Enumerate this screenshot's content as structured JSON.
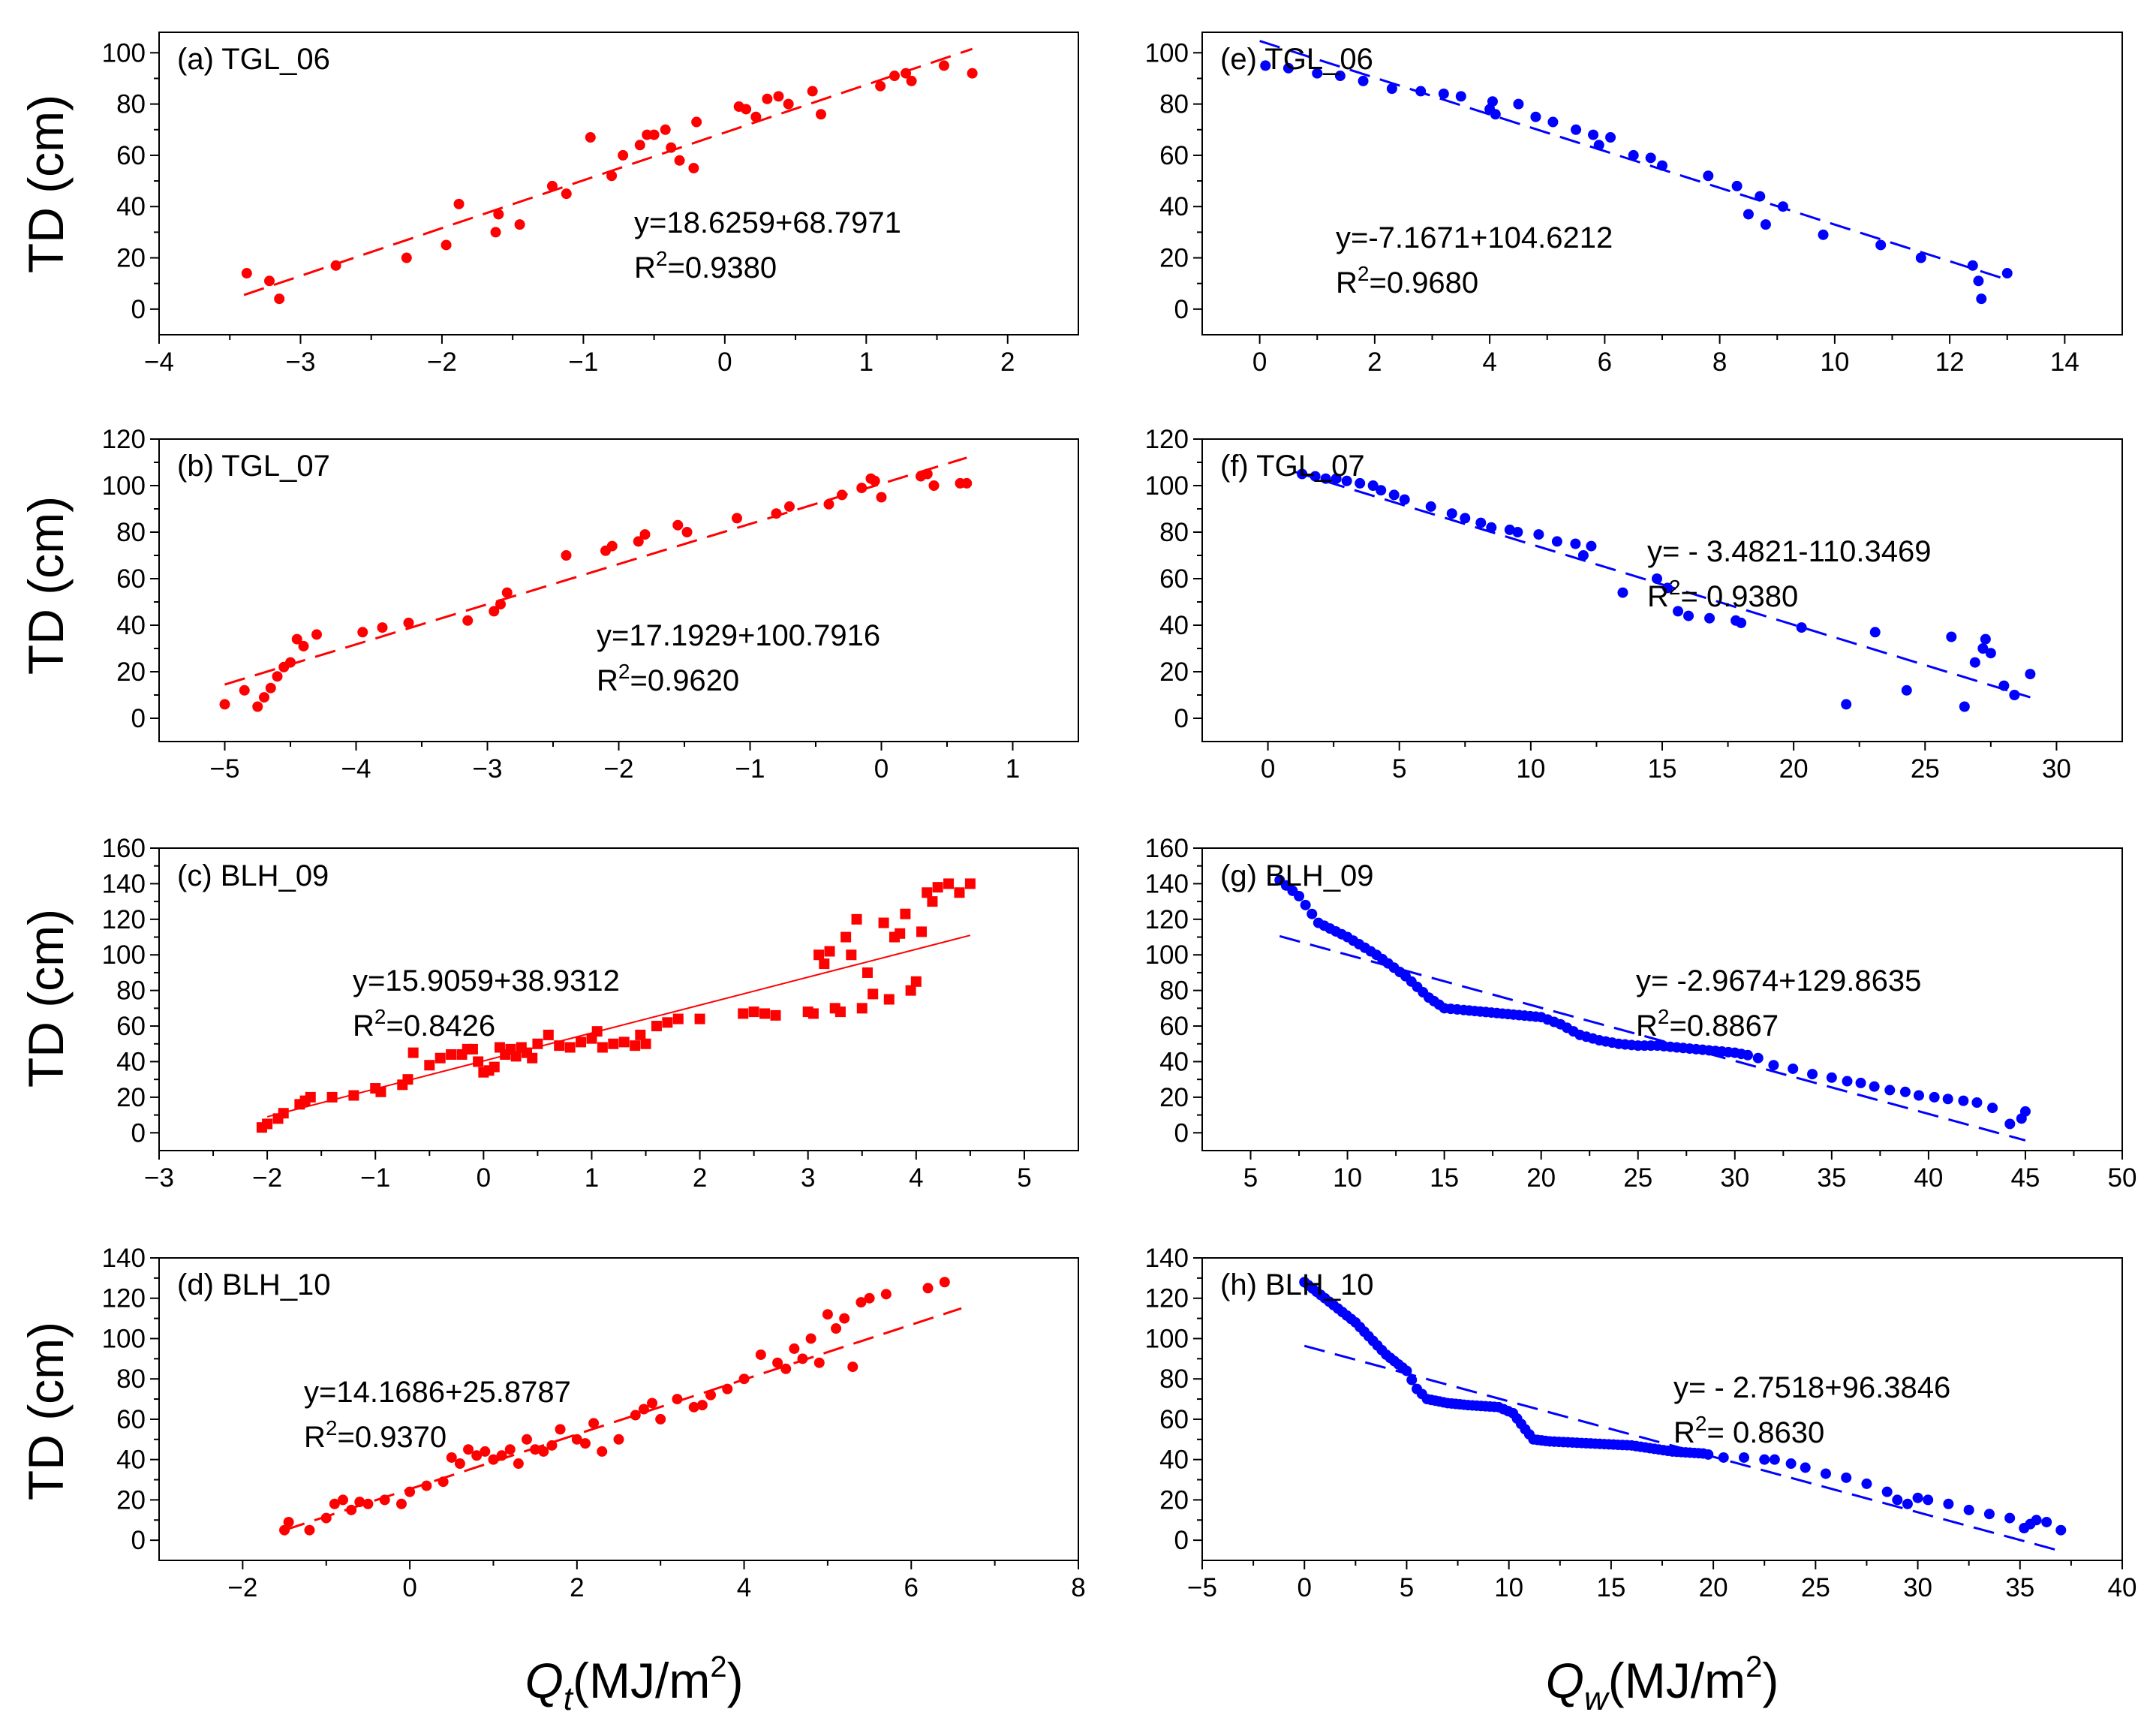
{
  "figure": {
    "ylabel": "TD (cm)",
    "xlabel_left": {
      "symbol": "Q",
      "sub": "t",
      "unit": "(MJ/m",
      "sup": "2",
      "close": ")"
    },
    "xlabel_right": {
      "symbol": "Q",
      "sub": "w",
      "unit": "(MJ/m",
      "sup": "2",
      "close": ")"
    }
  },
  "colors": {
    "red": "#ff0000",
    "blue": "#0000ff",
    "axis": "#000000"
  },
  "chart_data": [
    {
      "id": "a",
      "type": "scatter",
      "label": "(a) TGL_06",
      "color": "#ff0000",
      "marker": "circle",
      "xlim": [
        -4,
        2.5
      ],
      "ylim": [
        -10,
        108
      ],
      "xticks": [
        -4,
        -3,
        -2,
        -1,
        0,
        1,
        2
      ],
      "xticklabels": [
        "−4",
        "−3",
        "−2",
        "−1",
        "0",
        "1",
        "2"
      ],
      "yticks": [
        0,
        20,
        40,
        60,
        80,
        100
      ],
      "yticklabels": [
        "0",
        "20",
        "40",
        "60",
        "80",
        "100"
      ],
      "eq": "y=18.6259+68.7971",
      "r2_prefix": "R",
      "r2_sup": "2",
      "r2_value": "=0.9380",
      "fit": {
        "x": [
          -3.4,
          1.75
        ],
        "y": [
          5.5,
          101.5
        ],
        "dash": "28 14"
      },
      "x": [
        -3.38,
        -3.22,
        -3.15,
        -2.75,
        -2.25,
        -1.97,
        -1.88,
        -1.62,
        -1.6,
        -1.45,
        -1.22,
        -1.12,
        -0.95,
        -0.8,
        -0.72,
        -0.6,
        -0.55,
        -0.5,
        -0.42,
        -0.38,
        -0.32,
        -0.22,
        -0.2,
        0.1,
        0.15,
        0.22,
        0.3,
        0.38,
        0.45,
        0.62,
        0.68,
        1.1,
        1.2,
        1.28,
        1.32,
        1.55,
        1.75
      ],
      "y": [
        14,
        11,
        4,
        17,
        20,
        25,
        41,
        30,
        37,
        33,
        48,
        45,
        67,
        52,
        60,
        64,
        68,
        68,
        70,
        63,
        58,
        55,
        73,
        79,
        78,
        75,
        82,
        83,
        80,
        85,
        76,
        87,
        91,
        92,
        89,
        95,
        92
      ]
    },
    {
      "id": "b",
      "type": "scatter",
      "label": "(b) TGL_07",
      "color": "#ff0000",
      "marker": "circle",
      "xlim": [
        -5.5,
        1.5
      ],
      "ylim": [
        -10,
        120
      ],
      "xticks": [
        -5,
        -4,
        -3,
        -2,
        -1,
        0,
        1
      ],
      "xticklabels": [
        "−5",
        "−4",
        "−3",
        "−2",
        "−1",
        "0",
        "1"
      ],
      "yticks": [
        0,
        20,
        40,
        60,
        80,
        100,
        120
      ],
      "yticklabels": [
        "0",
        "20",
        "40",
        "60",
        "80",
        "100",
        "120"
      ],
      "eq": "y=17.1929+100.7916",
      "r2_prefix": "R",
      "r2_sup": "2",
      "r2_value": "=0.9620",
      "fit": {
        "x": [
          -5.0,
          0.65
        ],
        "y": [
          14.5,
          112
        ],
        "dash": "28 14"
      },
      "x": [
        -5.0,
        -4.85,
        -4.75,
        -4.7,
        -4.65,
        -4.6,
        -4.55,
        -4.5,
        -4.45,
        -4.4,
        -4.3,
        -3.95,
        -3.8,
        -3.6,
        -3.15,
        -2.95,
        -2.9,
        -2.85,
        -2.4,
        -2.1,
        -2.05,
        -1.85,
        -1.8,
        -1.55,
        -1.48,
        -1.1,
        -0.8,
        -0.7,
        -0.4,
        -0.3,
        -0.15,
        -0.08,
        -0.05,
        0.0,
        0.3,
        0.35,
        0.4,
        0.6,
        0.65
      ],
      "y": [
        6,
        12,
        5,
        9,
        13,
        18,
        22,
        24,
        34,
        31,
        36,
        37,
        39,
        41,
        42,
        46,
        49,
        54,
        70,
        72,
        74,
        76,
        79,
        83,
        80,
        86,
        88,
        91,
        92,
        96,
        99,
        103,
        102,
        95,
        104,
        105,
        100,
        101,
        101
      ]
    },
    {
      "id": "c",
      "type": "scatter",
      "label": "(c) BLH_09",
      "color": "#ff0000",
      "marker": "square",
      "xlim": [
        -3,
        5.5
      ],
      "ylim": [
        -10,
        160
      ],
      "xticks": [
        -3,
        -2,
        -1,
        0,
        1,
        2,
        3,
        4,
        5
      ],
      "xticklabels": [
        "−3",
        "−2",
        "−1",
        "0",
        "1",
        "2",
        "3",
        "4",
        "5"
      ],
      "yticks": [
        0,
        20,
        40,
        60,
        80,
        100,
        120,
        140,
        160
      ],
      "yticklabels": [
        "0",
        "20",
        "40",
        "60",
        "80",
        "100",
        "120",
        "140",
        "160"
      ],
      "eq": "y=15.9059+38.9312",
      "r2_prefix": "R",
      "r2_sup": "2",
      "r2_value": "=0.8426",
      "fit": {
        "x": [
          -2.0,
          4.5
        ],
        "y": [
          9,
          111
        ],
        "dash": "none"
      },
      "x": [
        -2.05,
        -2.0,
        -1.9,
        -1.85,
        -1.7,
        -1.65,
        -1.6,
        -1.4,
        -1.2,
        -1.0,
        -0.95,
        -0.75,
        -0.7,
        -0.65,
        -0.5,
        -0.4,
        -0.3,
        -0.2,
        -0.15,
        -0.1,
        -0.05,
        0.0,
        0.05,
        0.1,
        0.15,
        0.2,
        0.25,
        0.3,
        0.35,
        0.4,
        0.45,
        0.5,
        0.6,
        0.7,
        0.8,
        0.9,
        1.0,
        1.05,
        1.1,
        1.2,
        1.3,
        1.4,
        1.45,
        1.5,
        1.6,
        1.7,
        1.8,
        2.0,
        2.4,
        2.5,
        2.6,
        2.7,
        3.0,
        3.05,
        3.1,
        3.15,
        3.2,
        3.25,
        3.3,
        3.35,
        3.4,
        3.45,
        3.5,
        3.55,
        3.6,
        3.7,
        3.75,
        3.8,
        3.85,
        3.9,
        3.95,
        4.0,
        4.05,
        4.1,
        4.15,
        4.2,
        4.3,
        4.4,
        4.5
      ],
      "y": [
        3,
        5,
        8,
        11,
        16,
        18,
        20,
        20,
        21,
        25,
        23,
        27,
        30,
        45,
        38,
        42,
        44,
        44,
        47,
        47,
        40,
        34,
        35,
        37,
        48,
        44,
        47,
        43,
        48,
        45,
        42,
        50,
        55,
        49,
        48,
        51,
        53,
        57,
        48,
        50,
        51,
        49,
        55,
        50,
        60,
        62,
        64,
        64,
        67,
        68,
        67,
        66,
        68,
        67,
        100,
        95,
        102,
        70,
        68,
        110,
        100,
        120,
        70,
        90,
        78,
        118,
        75,
        110,
        112,
        123,
        80,
        85,
        113,
        135,
        130,
        138,
        140,
        135,
        140
      ]
    },
    {
      "id": "d",
      "type": "scatter",
      "label": "(d) BLH_10",
      "color": "#ff0000",
      "marker": "circle",
      "xlim": [
        -3,
        8
      ],
      "ylim": [
        -10,
        140
      ],
      "xticks": [
        -2,
        0,
        2,
        4,
        6,
        8
      ],
      "xticklabels": [
        "−2",
        "0",
        "2",
        "4",
        "6",
        "8"
      ],
      "yticks": [
        0,
        20,
        40,
        60,
        80,
        100,
        120,
        140
      ],
      "yticklabels": [
        "0",
        "20",
        "40",
        "60",
        "80",
        "100",
        "120",
        "140"
      ],
      "eq": "y=14.1686+25.8787",
      "r2_prefix": "R",
      "r2_sup": "2",
      "r2_value": "=0.9370",
      "fit": {
        "x": [
          -1.5,
          6.6
        ],
        "y": [
          5,
          115
        ],
        "dash": "28 14"
      },
      "x": [
        -1.5,
        -1.45,
        -1.2,
        -1.0,
        -0.9,
        -0.8,
        -0.7,
        -0.6,
        -0.5,
        -0.3,
        -0.1,
        0.0,
        0.2,
        0.4,
        0.5,
        0.6,
        0.7,
        0.8,
        0.9,
        1.0,
        1.1,
        1.2,
        1.3,
        1.4,
        1.5,
        1.6,
        1.7,
        1.8,
        2.0,
        2.1,
        2.2,
        2.3,
        2.5,
        2.7,
        2.8,
        2.9,
        3.0,
        3.2,
        3.4,
        3.5,
        3.6,
        3.8,
        4.0,
        4.2,
        4.4,
        4.5,
        4.6,
        4.7,
        4.8,
        4.9,
        5.0,
        5.1,
        5.2,
        5.3,
        5.4,
        5.5,
        5.7,
        6.2,
        6.4
      ],
      "y": [
        5,
        9,
        5,
        11,
        18,
        20,
        15,
        19,
        18,
        20,
        18,
        24,
        27,
        29,
        41,
        38,
        45,
        42,
        44,
        40,
        42,
        45,
        38,
        50,
        45,
        44,
        47,
        55,
        50,
        48,
        58,
        44,
        50,
        62,
        65,
        68,
        60,
        70,
        66,
        67,
        72,
        75,
        80,
        92,
        88,
        85,
        95,
        90,
        100,
        88,
        112,
        105,
        110,
        86,
        118,
        120,
        122,
        125,
        128
      ]
    },
    {
      "id": "e",
      "type": "scatter",
      "label": "(e) TGL_06",
      "color": "#0000ff",
      "marker": "circle",
      "xlim": [
        -1,
        15
      ],
      "ylim": [
        -10,
        108
      ],
      "xticks": [
        0,
        2,
        4,
        6,
        8,
        10,
        12,
        14
      ],
      "xticklabels": [
        "0",
        "2",
        "4",
        "6",
        "8",
        "10",
        "12",
        "14"
      ],
      "yticks": [
        0,
        20,
        40,
        60,
        80,
        100
      ],
      "yticklabels": [
        "0",
        "20",
        "40",
        "60",
        "80",
        "100"
      ],
      "eq": "y=-7.1671+104.6212",
      "r2_prefix": "R",
      "r2_sup": "2",
      "r2_value": "=0.9680",
      "fit": {
        "x": [
          0.0,
          13.0
        ],
        "y": [
          104.6,
          11.5
        ],
        "dash": "28 14"
      },
      "x": [
        0.1,
        0.5,
        1.0,
        1.4,
        1.8,
        2.3,
        2.8,
        3.2,
        3.5,
        4.0,
        4.05,
        4.1,
        4.5,
        4.8,
        5.1,
        5.5,
        5.8,
        5.9,
        6.1,
        6.5,
        6.8,
        7.0,
        7.8,
        8.3,
        8.5,
        8.7,
        8.8,
        9.1,
        9.8,
        10.8,
        11.5,
        12.4,
        12.5,
        12.55,
        13.0
      ],
      "y": [
        95,
        94,
        92,
        91,
        89,
        86,
        85,
        84,
        83,
        78,
        81,
        76,
        80,
        75,
        73,
        70,
        68,
        64,
        67,
        60,
        59,
        56,
        52,
        48,
        37,
        44,
        33,
        40,
        29,
        25,
        20,
        17,
        11,
        4,
        14
      ]
    },
    {
      "id": "f",
      "type": "scatter",
      "label": "(f) TGL_07",
      "color": "#0000ff",
      "marker": "circle",
      "xlim": [
        -2.5,
        32.5
      ],
      "ylim": [
        -10,
        120
      ],
      "xticks": [
        0,
        5,
        10,
        15,
        20,
        25,
        30
      ],
      "xticklabels": [
        "0",
        "5",
        "10",
        "15",
        "20",
        "25",
        "30"
      ],
      "yticks": [
        0,
        20,
        40,
        60,
        80,
        100,
        120
      ],
      "yticklabels": [
        "0",
        "20",
        "40",
        "60",
        "80",
        "100",
        "120"
      ],
      "eq": "y= - 3.4821-110.3469",
      "r2_prefix": "R",
      "r2_sup": "2",
      "r2_value": "= 0.9380",
      "fit": {
        "x": [
          1.0,
          29.0
        ],
        "y": [
          106.0,
          9.0
        ],
        "dash": "28 14"
      },
      "x": [
        1.3,
        1.8,
        2.2,
        2.6,
        3.0,
        3.5,
        4.0,
        4.3,
        4.8,
        5.2,
        6.2,
        7.0,
        7.5,
        8.1,
        8.5,
        9.2,
        9.5,
        10.3,
        11.0,
        11.7,
        12.0,
        12.3,
        13.5,
        14.8,
        15.2,
        15.6,
        16.0,
        16.8,
        17.8,
        18.0,
        20.3,
        22.0,
        23.1,
        24.3,
        26.0,
        26.5,
        26.9,
        27.2,
        27.3,
        27.5,
        28.0,
        28.4,
        29.0
      ],
      "y": [
        105,
        104,
        103,
        103,
        102,
        101,
        100,
        98,
        96,
        94,
        91,
        88,
        86,
        84,
        82,
        81,
        80,
        79,
        76,
        75,
        70,
        74,
        54,
        60,
        56,
        46,
        44,
        43,
        42,
        41,
        39,
        6,
        37,
        12,
        35,
        5,
        24,
        30,
        34,
        28,
        14,
        10,
        19
      ]
    },
    {
      "id": "g",
      "type": "scatter",
      "label": "(g) BLH_09",
      "color": "#0000ff",
      "marker": "circle",
      "xlim": [
        2.5,
        50
      ],
      "ylim": [
        -10,
        160
      ],
      "xticks": [
        5,
        10,
        15,
        20,
        25,
        30,
        35,
        40,
        45,
        50
      ],
      "xticklabels": [
        "5",
        "10",
        "15",
        "20",
        "25",
        "30",
        "35",
        "40",
        "45",
        "50"
      ],
      "yticks": [
        0,
        20,
        40,
        60,
        80,
        100,
        120,
        140,
        160
      ],
      "yticklabels": [
        "0",
        "20",
        "40",
        "60",
        "80",
        "100",
        "120",
        "140",
        "160"
      ],
      "eq": "y= -2.9674+129.8635",
      "r2_prefix": "R",
      "r2_sup": "2",
      "r2_value": "=0.8867",
      "fit": {
        "x": [
          6.5,
          45.0
        ],
        "y": [
          110.5,
          -4.3
        ],
        "dash": "28 14"
      },
      "curve": {
        "x": [
          6.5,
          7.5,
          8.5,
          10.0,
          11.5,
          13.0,
          14.2,
          15.0,
          16.0,
          18.0,
          20.0,
          21.0,
          22.0,
          23.0,
          24.0,
          25.0,
          26.0,
          27.0,
          28.0,
          29.0,
          30.0,
          31.0
        ],
        "y": [
          142,
          133,
          118,
          110,
          100,
          88,
          76,
          70,
          69,
          67,
          65,
          61,
          55,
          52,
          50,
          49,
          49,
          48,
          47,
          46,
          45,
          43
        ],
        "step": 0.3
      },
      "x": [
        31.2,
        32.0,
        33.0,
        34.0,
        35.0,
        35.8,
        36.5,
        37.2,
        38.0,
        38.8,
        39.5,
        40.3,
        41.0,
        41.8,
        42.5,
        43.3,
        44.2,
        44.8,
        45.0
      ],
      "y": [
        42,
        38,
        36,
        33,
        31,
        29,
        28,
        26,
        24,
        23,
        21,
        20,
        19,
        18,
        17,
        14,
        5,
        8,
        12
      ]
    },
    {
      "id": "h",
      "type": "scatter",
      "label": "(h) BLH_10",
      "color": "#0000ff",
      "marker": "circle",
      "xlim": [
        -5,
        40
      ],
      "ylim": [
        -10,
        140
      ],
      "xticks": [
        -5,
        0,
        5,
        10,
        15,
        20,
        25,
        30,
        35,
        40
      ],
      "xticklabels": [
        "−5",
        "0",
        "5",
        "10",
        "15",
        "20",
        "25",
        "30",
        "35",
        "40"
      ],
      "yticks": [
        0,
        20,
        40,
        60,
        80,
        100,
        120,
        140
      ],
      "yticklabels": [
        "0",
        "20",
        "40",
        "60",
        "80",
        "100",
        "120",
        "140"
      ],
      "eq": "y= - 2.7518+96.3846",
      "r2_prefix": "R",
      "r2_sup": "2",
      "r2_value": "= 0.8630",
      "fit": {
        "x": [
          0.0,
          37.0
        ],
        "y": [
          96.4,
          -5.4
        ],
        "dash": "28 14"
      },
      "curve": {
        "x": [
          0.0,
          1.0,
          2.5,
          4.0,
          5.0,
          5.5,
          6.0,
          7.0,
          8.0,
          9.5,
          10.2,
          10.8,
          11.2,
          12.0,
          14.0,
          16.0,
          18.0,
          19.5,
          20.0
        ],
        "y": [
          128,
          120,
          108,
          92,
          84,
          75,
          70,
          68,
          67,
          66,
          63,
          55,
          50,
          49,
          48,
          47,
          44,
          43,
          42
        ],
        "step": 0.22
      },
      "x": [
        20.5,
        21.5,
        22.5,
        23.0,
        23.8,
        24.5,
        25.5,
        26.5,
        27.5,
        28.5,
        29.0,
        29.5,
        30.0,
        30.5,
        31.5,
        32.5,
        33.5,
        34.5,
        35.2,
        35.5,
        35.8,
        36.3,
        37.0
      ],
      "y": [
        41,
        41,
        40,
        40,
        38,
        36,
        33,
        31,
        28,
        24,
        20,
        18,
        21,
        20,
        18,
        15,
        13,
        11,
        6,
        8,
        10,
        9,
        5
      ]
    }
  ]
}
